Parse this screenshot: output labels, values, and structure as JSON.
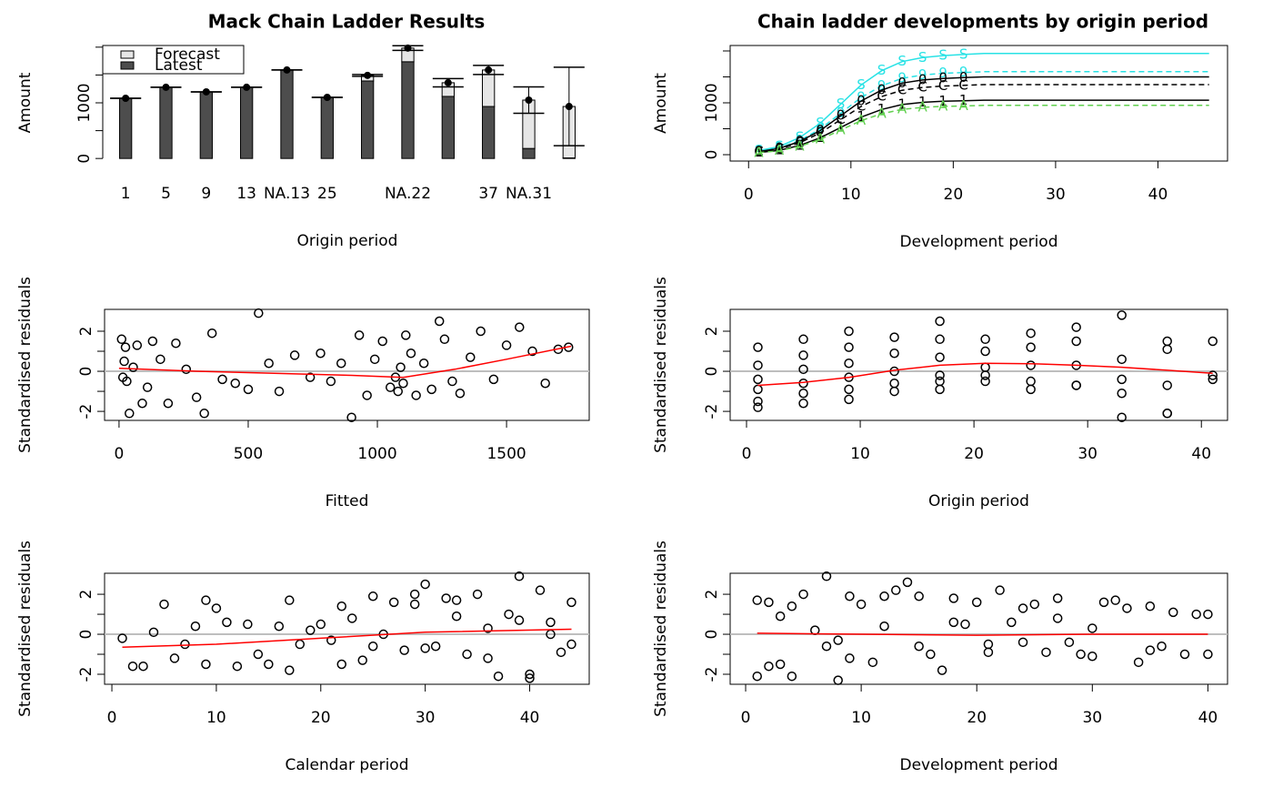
{
  "chart_data": [
    {
      "type": "bar",
      "title": "Mack Chain Ladder Results",
      "xlabel": "Origin period",
      "ylabel": "Amount",
      "categories": [
        "1",
        "5",
        "9",
        "13",
        "NA.13",
        "25",
        null,
        "NA.22",
        null,
        "37",
        "NA.31",
        null
      ],
      "series": [
        {
          "name": "Latest",
          "color": "#4d4d4d",
          "values": [
            1082,
            1279,
            1197,
            1279,
            1590,
            1098,
            1393,
            1738,
            1115,
            934,
            180,
            10
          ]
        },
        {
          "name": "Forecast",
          "color": "#e6e6e6",
          "values": [
            0,
            0,
            0,
            0,
            0,
            0,
            100,
            246,
            246,
            656,
            869,
            924
          ]
        }
      ],
      "errors": [
        0,
        0,
        0,
        0,
        0,
        0,
        16,
        41,
        74,
        82,
        238,
        705
      ],
      "legend": "top-left",
      "ylim": [
        -30,
        2030
      ],
      "yticks": [
        0,
        1000
      ],
      "yminor": [
        500,
        1500,
        2000
      ]
    },
    {
      "type": "line",
      "title": "Chain ladder developments by origin period",
      "xlabel": "Development period",
      "ylabel": "Amount",
      "x": [
        1,
        3,
        5,
        7,
        9,
        11,
        13,
        15,
        17,
        19,
        21,
        23,
        25,
        27,
        29,
        31,
        33,
        35,
        37,
        39,
        41,
        43,
        45
      ],
      "series": [
        {
          "marker": "S",
          "color": "#28e2e5",
          "values": [
            78,
            156,
            332,
            605,
            975,
            1346,
            1619,
            1794,
            1872,
            1911,
            1931,
            1950,
            1950,
            1950,
            1950,
            1950,
            1950,
            1950,
            1950,
            1950,
            1950,
            1950,
            1950
          ]
        },
        {
          "marker": "9",
          "color": "#28e2e5",
          "values": [
            64,
            128,
            272,
            496,
            800,
            1104,
            1328,
            1472,
            1536,
            1568,
            1584,
            1600,
            1600,
            1600,
            1600,
            1600,
            1600,
            1600,
            1600,
            1600,
            1600,
            1600,
            1600
          ]
        },
        {
          "marker": "0",
          "color": "#000000",
          "values": [
            60,
            120,
            255,
            465,
            750,
            1035,
            1245,
            1380,
            1440,
            1470,
            1485,
            1500,
            1500,
            1500,
            1500,
            1500,
            1500,
            1500,
            1500,
            1500,
            1500,
            1500,
            1500
          ]
        },
        {
          "marker": "C",
          "color": "#000000",
          "values": [
            54,
            108,
            230,
            419,
            675,
            932,
            1121,
            1242,
            1296,
            1323,
            1337,
            1350,
            1350,
            1350,
            1350,
            1350,
            1350,
            1350,
            1350,
            1350,
            1350,
            1350,
            1350
          ]
        },
        {
          "marker": "1",
          "color": "#000000",
          "values": [
            42,
            84,
            179,
            326,
            525,
            725,
            872,
            966,
            1008,
            1029,
            1040,
            1050,
            1050,
            1050,
            1050,
            1050,
            1050,
            1050,
            1050,
            1050,
            1050,
            1050,
            1050
          ]
        },
        {
          "marker": "A",
          "color": "#61d04f",
          "values": [
            38,
            76,
            162,
            295,
            475,
            656,
            789,
            874,
            912,
            931,
            941,
            950,
            950,
            950,
            950,
            950,
            950,
            950,
            950,
            950,
            950,
            950,
            950
          ]
        }
      ],
      "xlim": [
        -1.8,
        46.8
      ],
      "xticks": [
        0,
        10,
        20,
        30,
        40
      ],
      "ylim": [
        -123,
        2105
      ],
      "yticks": [
        0,
        1000
      ],
      "yminor": [
        500,
        1500,
        2000
      ]
    },
    {
      "type": "scatter",
      "xlabel": "Fitted",
      "ylabel": "Standardised residuals",
      "x": [
        10,
        15,
        20,
        25,
        30,
        40,
        55,
        70,
        90,
        110,
        130,
        160,
        190,
        220,
        260,
        300,
        330,
        360,
        400,
        450,
        500,
        540,
        580,
        620,
        680,
        740,
        780,
        820,
        860,
        900,
        930,
        960,
        990,
        1020,
        1050,
        1070,
        1080,
        1090,
        1100,
        1110,
        1130,
        1150,
        1180,
        1210,
        1240,
        1260,
        1290,
        1320,
        1360,
        1400,
        1450,
        1500,
        1550,
        1600,
        1650,
        1700,
        1740
      ],
      "values": [
        1.6,
        -0.3,
        0.5,
        1.2,
        -0.5,
        -2.1,
        0.2,
        1.3,
        -1.6,
        -0.8,
        1.5,
        0.6,
        -1.6,
        1.4,
        0.1,
        -1.3,
        -2.1,
        1.9,
        -0.4,
        -0.6,
        -0.9,
        2.9,
        0.4,
        -1.0,
        0.8,
        -0.3,
        0.9,
        -0.5,
        0.4,
        -2.3,
        1.8,
        -1.2,
        0.6,
        1.5,
        -0.8,
        -0.3,
        -1.0,
        0.2,
        -0.6,
        1.8,
        0.9,
        -1.2,
        0.4,
        -0.9,
        2.5,
        1.6,
        -0.5,
        -1.1,
        0.7,
        2.0,
        -0.4,
        1.3,
        2.2,
        1.0,
        -0.6,
        1.1,
        1.2
      ],
      "smooth": {
        "color": "#ff0000",
        "x": [
          0,
          300,
          600,
          900,
          1100,
          1300,
          1500,
          1750
        ],
        "values": [
          0.15,
          0,
          -0.1,
          -0.2,
          -0.3,
          0.1,
          0.6,
          1.25
        ]
      },
      "hline": 0,
      "hline_color": "#bebebe",
      "xlim": [
        -56,
        1820
      ],
      "xticks": [
        0,
        500,
        1000,
        1500
      ],
      "ylim": [
        -2.45,
        3.09
      ],
      "yticks": [
        -2,
        0,
        2
      ],
      "yminor": [
        -1,
        1
      ]
    },
    {
      "type": "scatter",
      "xlabel": "Origin period",
      "ylabel": "Standardised residuals",
      "x": [
        1,
        1,
        1,
        1,
        1,
        1,
        5,
        5,
        5,
        5,
        5,
        5,
        9,
        9,
        9,
        9,
        9,
        9,
        13,
        13,
        13,
        13,
        13,
        17,
        17,
        17,
        17,
        17,
        17,
        21,
        21,
        21,
        21,
        21,
        25,
        25,
        25,
        25,
        25,
        29,
        29,
        29,
        29,
        29,
        33,
        33,
        33,
        33,
        33,
        37,
        37,
        37,
        37,
        37,
        41,
        41,
        41
      ],
      "values": [
        1.2,
        0.3,
        -0.4,
        -0.9,
        -1.5,
        -1.8,
        1.6,
        0.8,
        0.1,
        -0.6,
        -1.1,
        -1.6,
        2.0,
        1.2,
        0.4,
        -0.3,
        -0.9,
        -1.4,
        1.7,
        0.9,
        0.0,
        -0.6,
        -1.0,
        2.5,
        1.6,
        0.7,
        -0.2,
        -0.5,
        -0.9,
        1.6,
        1.0,
        0.2,
        -0.2,
        -0.5,
        1.9,
        1.2,
        0.3,
        -0.5,
        -0.9,
        2.2,
        1.5,
        0.3,
        -0.7,
        -0.7,
        2.8,
        0.6,
        -0.4,
        -1.1,
        -2.3,
        1.5,
        1.1,
        -0.7,
        -2.1,
        -2.1,
        1.5,
        -0.2,
        -0.4
      ],
      "smooth": {
        "color": "#ff0000",
        "x": [
          1,
          5,
          9,
          13,
          17,
          21,
          25,
          29,
          33,
          37,
          41
        ],
        "values": [
          -0.7,
          -0.55,
          -0.3,
          0.05,
          0.3,
          0.4,
          0.38,
          0.3,
          0.2,
          0.05,
          -0.1
        ]
      },
      "hline": 0,
      "hline_color": "#bebebe",
      "xlim": [
        -1.44,
        42.3
      ],
      "xticks": [
        0,
        10,
        20,
        30,
        40
      ],
      "ylim": [
        -2.45,
        3.09
      ],
      "yticks": [
        -2,
        0,
        2
      ],
      "yminor": [
        -1,
        1
      ]
    },
    {
      "type": "scatter",
      "xlabel": "Calendar period",
      "ylabel": "Standardised residuals",
      "x": [
        1,
        2,
        3,
        4,
        5,
        6,
        7,
        8,
        9,
        10,
        11,
        12,
        13,
        14,
        15,
        16,
        17,
        18,
        19,
        20,
        21,
        22,
        23,
        24,
        25,
        26,
        27,
        28,
        29,
        30,
        31,
        32,
        33,
        34,
        35,
        36,
        37,
        38,
        39,
        40,
        41,
        42,
        43,
        44,
        9,
        17,
        22,
        25,
        29,
        30,
        33,
        36,
        39,
        40,
        42,
        44
      ],
      "values": [
        -0.2,
        -1.6,
        -1.6,
        0.1,
        1.5,
        -1.2,
        -0.5,
        0.4,
        1.7,
        1.3,
        0.6,
        -1.6,
        0.5,
        -1.0,
        -1.5,
        0.4,
        -1.8,
        -0.5,
        0.2,
        0.5,
        -0.3,
        1.4,
        0.8,
        -1.3,
        1.9,
        0.0,
        1.6,
        -0.8,
        2.0,
        2.5,
        -0.6,
        1.8,
        0.9,
        -1.0,
        2.0,
        0.3,
        -2.1,
        1.0,
        2.9,
        -2.2,
        2.2,
        0.0,
        -0.9,
        1.6,
        -1.5,
        1.7,
        -1.5,
        -0.6,
        1.5,
        -0.7,
        1.7,
        -1.2,
        0.7,
        -2.0,
        0.6,
        -0.5
      ],
      "smooth": {
        "color": "#ff0000",
        "x": [
          1,
          10,
          20,
          30,
          44
        ],
        "values": [
          -0.65,
          -0.5,
          -0.2,
          0.1,
          0.25
        ]
      },
      "hline": 0,
      "hline_color": "#bebebe",
      "xlim": [
        -0.7,
        45.7
      ],
      "xticks": [
        0,
        10,
        20,
        30,
        40
      ],
      "ylim": [
        -2.5,
        3.05
      ],
      "yticks": [
        -2,
        0,
        2
      ],
      "yminor": [
        -1,
        1
      ]
    },
    {
      "type": "scatter",
      "xlabel": "Development period",
      "ylabel": "Standardised residuals",
      "x": [
        1,
        1,
        2,
        2,
        3,
        4,
        4,
        5,
        6,
        7,
        7,
        8,
        9,
        9,
        10,
        11,
        12,
        13,
        14,
        15,
        16,
        17,
        18,
        19,
        20,
        21,
        22,
        23,
        24,
        25,
        26,
        27,
        28,
        29,
        30,
        31,
        32,
        33,
        34,
        35,
        36,
        37,
        38,
        39,
        40,
        40,
        3,
        8,
        12,
        15,
        18,
        21,
        24,
        27,
        30,
        35
      ],
      "values": [
        1.7,
        -2.1,
        1.6,
        -1.6,
        -1.5,
        1.4,
        -2.1,
        2.0,
        0.2,
        2.9,
        -0.6,
        -2.3,
        1.9,
        -1.2,
        1.5,
        -1.4,
        1.9,
        2.2,
        2.6,
        1.9,
        -1.0,
        -1.8,
        1.8,
        0.5,
        1.6,
        -0.5,
        2.2,
        0.6,
        1.3,
        1.5,
        -0.9,
        1.8,
        -0.4,
        -1.0,
        0.3,
        1.6,
        1.7,
        1.3,
        -1.4,
        1.4,
        -0.6,
        1.1,
        -1.0,
        1.0,
        1.0,
        -1.0,
        0.9,
        -0.3,
        0.4,
        -0.6,
        0.6,
        -0.9,
        -0.4,
        0.8,
        -1.1,
        -0.8
      ],
      "smooth": {
        "color": "#ff0000",
        "x": [
          1,
          10,
          20,
          30,
          40
        ],
        "values": [
          0.05,
          0.0,
          -0.05,
          0.0,
          0.0
        ]
      },
      "hline": 0,
      "hline_color": "#bebebe",
      "xlim": [
        -1.34,
        41.7
      ],
      "xticks": [
        0,
        10,
        20,
        30,
        40
      ],
      "ylim": [
        -2.5,
        3.05
      ],
      "yticks": [
        -2,
        0,
        2
      ],
      "yminor": [
        -1,
        1
      ]
    }
  ]
}
